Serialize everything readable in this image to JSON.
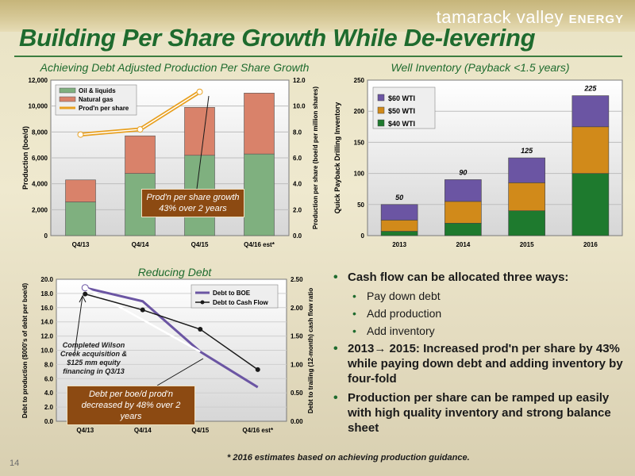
{
  "header": {
    "logo_text": "tamarack valley",
    "logo_bold": "ENERGY",
    "title": "Building Per Share Growth While De-levering"
  },
  "charts": {
    "production_title": "Achieving Debt Adjusted Production Per Share Growth",
    "inventory_title": "Well Inventory (Payback <1.5 years)",
    "debt_title": "Reducing Debt"
  },
  "callouts": {
    "prod_growth": "Prod'n per share growth 43% over 2 years",
    "debt_decrease": "Debt per boe/d prod'n decreased by 48% over 2 years",
    "wilson_note": "Completed Wilson Creek acquisition & $125 mm equity financing in Q3/13"
  },
  "bullets": {
    "b1": "Cash flow can be allocated three ways:",
    "s1": "Pay down debt",
    "s2": "Add production",
    "s3": "Add inventory",
    "b2": "2013→ 2015: Increased prod'n per share by 43% while paying down debt and adding inventory by four-fold",
    "b3": "Production per share can be ramped up easily with high quality inventory and strong balance sheet"
  },
  "footnote": "* 2016 estimates based on achieving production guidance.",
  "page_number": "14",
  "colors": {
    "oil": "#7fb07f",
    "gas": "#d9826a",
    "prodline": "#e8a020",
    "wti60": "#6b55a3",
    "wti50": "#d18a1a",
    "wti40": "#1e7a2e",
    "debt_boe": "#6b55a3",
    "debt_cf": "#1a1a1a"
  },
  "chart_data": [
    {
      "type": "bar",
      "stacked": true,
      "categories": [
        "Q4/13",
        "Q4/14",
        "Q4/15",
        "Q4/16 est*"
      ],
      "series": [
        {
          "name": "Oil & liquids",
          "values": [
            2600,
            4800,
            6200,
            6300
          ]
        },
        {
          "name": "Natural gas",
          "values": [
            1700,
            2900,
            3700,
            4700
          ]
        }
      ],
      "line_series": {
        "name": "Prod'n per share",
        "values": [
          7.8,
          8.2,
          11.1
        ]
      },
      "ylabel": "Production (boe/d)",
      "ylim": [
        0,
        12000
      ],
      "yticks": [
        "0",
        "2,000",
        "4,000",
        "6,000",
        "8,000",
        "10,000",
        "12,000"
      ],
      "y2label": "Production per share (boe/d per million shares)",
      "y2lim": [
        0,
        12
      ],
      "y2ticks": [
        "0.0",
        "2.0",
        "4.0",
        "6.0",
        "8.0",
        "10.0",
        "12.0"
      ],
      "legend": "top-left"
    },
    {
      "type": "bar",
      "stacked": true,
      "categories": [
        "2013",
        "2014",
        "2015",
        "2016"
      ],
      "series": [
        {
          "name": "$40 WTI",
          "values": [
            7,
            20,
            40,
            100
          ]
        },
        {
          "name": "$50 WTI",
          "values": [
            18,
            35,
            45,
            75
          ]
        },
        {
          "name": "$60 WTI",
          "values": [
            25,
            35,
            40,
            50
          ]
        }
      ],
      "totals": [
        "50",
        "90",
        "125",
        "225"
      ],
      "ylabel": "Quick Payback Drilling Inventory",
      "ylim": [
        0,
        250
      ],
      "yticks": [
        "0",
        "50",
        "100",
        "150",
        "200",
        "250"
      ],
      "legend": "top-left"
    },
    {
      "type": "line",
      "categories": [
        "Q4/13",
        "Q4/14",
        "Q4/15",
        "Q4/16 est*"
      ],
      "series": [
        {
          "name": "Debt to BOE",
          "values": [
            18.8,
            16.9,
            9.8,
            4.8
          ]
        },
        {
          "name": "Debt to Cash Flow",
          "values": [
            2.24,
            1.96,
            1.62,
            0.91
          ]
        }
      ],
      "ylabel": "Debt to production ($000's of debt per boe/d)",
      "ylim": [
        0,
        20
      ],
      "yticks": [
        "0.0",
        "2.0",
        "4.0",
        "6.0",
        "8.0",
        "10.0",
        "12.0",
        "14.0",
        "16.0",
        "18.0",
        "20.0"
      ],
      "y2label": "Debt to trailing (12-month) cash flow ratio",
      "y2lim": [
        0,
        2.5
      ],
      "y2ticks": [
        "0.00",
        "0.50",
        "1.00",
        "1.50",
        "2.00",
        "2.50"
      ],
      "legend": "top-right"
    }
  ]
}
